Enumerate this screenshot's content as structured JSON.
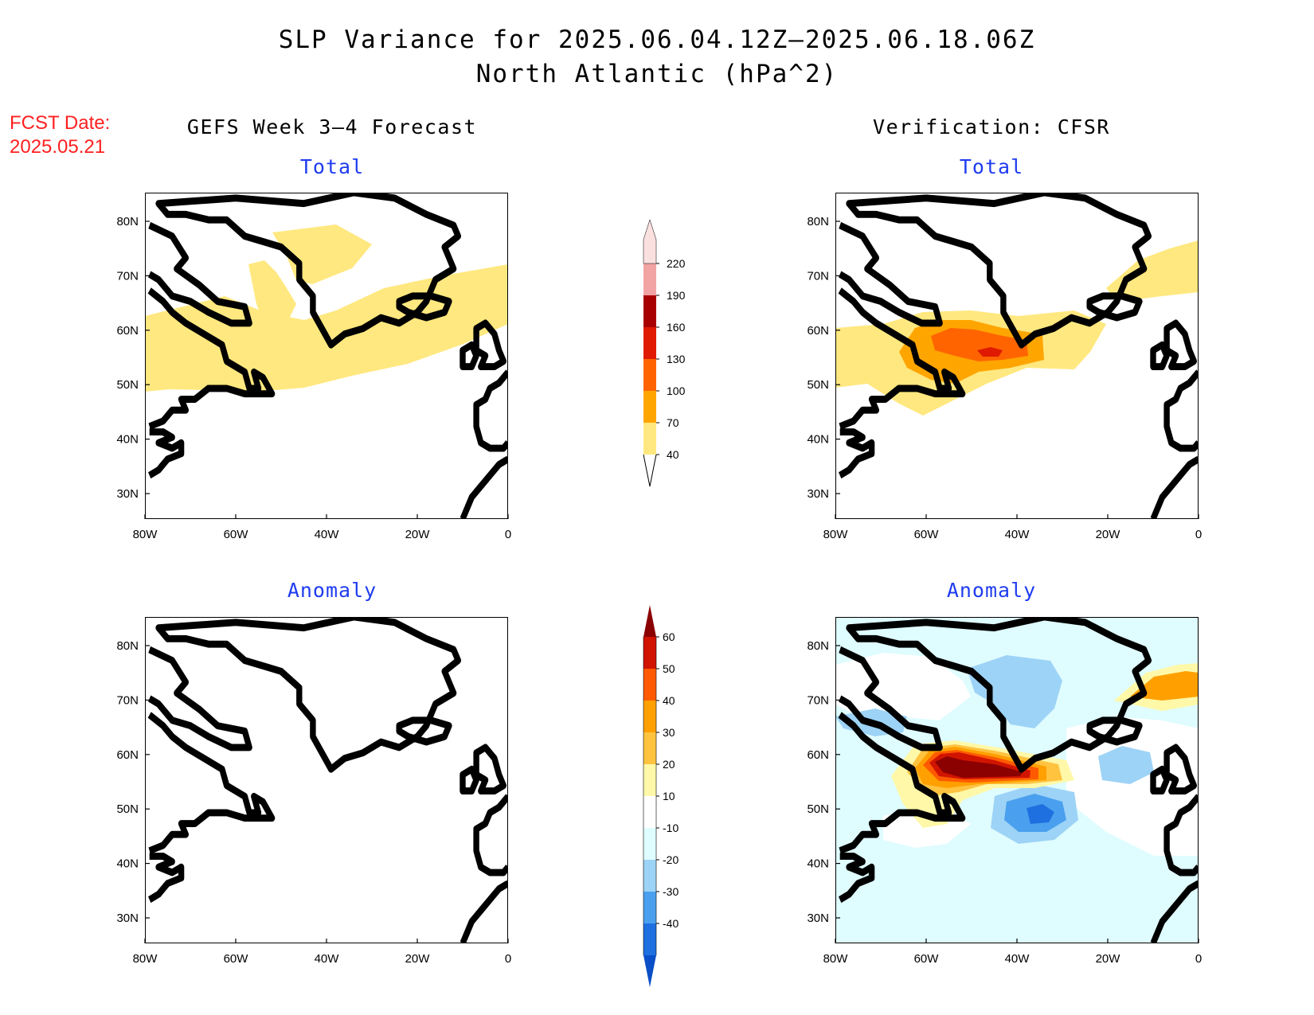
{
  "title": {
    "line1": "SLP Variance for 2025.06.04.12Z–2025.06.18.06Z",
    "line2": "North Atlantic (hPa^2)"
  },
  "fcst": {
    "label": "FCST Date:",
    "date": "2025.05.21"
  },
  "columns": {
    "left": "GEFS Week 3–4 Forecast",
    "right": "Verification: CFSR"
  },
  "panel_labels": {
    "total": "Total",
    "anomaly": "Anomaly"
  },
  "axes": {
    "lon_ticks": [
      "80W",
      "60W",
      "40W",
      "20W",
      "0"
    ],
    "lat_ticks": [
      "80N",
      "70N",
      "60N",
      "50N",
      "40N",
      "30N"
    ]
  },
  "colorbars": {
    "total": {
      "labels": [
        "40",
        "70",
        "100",
        "130",
        "160",
        "190",
        "220"
      ],
      "colors": [
        "#ffe87f",
        "#ffa500",
        "#ff6400",
        "#e01a00",
        "#a80000",
        "#f2a3a3",
        "#fbe0e0"
      ]
    },
    "anomaly": {
      "labels": [
        "60",
        "50",
        "40",
        "30",
        "20",
        "10",
        "-10",
        "-20",
        "-30",
        "-40"
      ],
      "colors": [
        "#8b0000",
        "#d11400",
        "#ff5a00",
        "#ffa000",
        "#ffc340",
        "#fff8a8",
        "#ffffff",
        "#dffcff",
        "#9dd3f6",
        "#4aa0ee",
        "#1e70e0",
        "#0a4fc8"
      ]
    }
  },
  "colors": {
    "title": "#000000",
    "sub_label": "#1f3cf0",
    "fcst": "#ff2020"
  }
}
